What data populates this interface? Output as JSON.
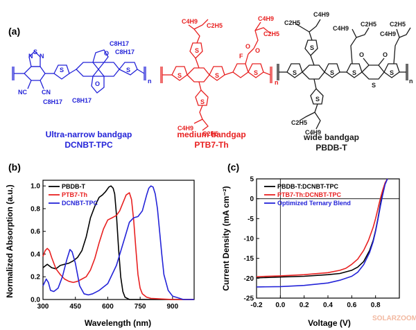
{
  "panel_a": {
    "label": "(a)",
    "molecules": [
      {
        "name": "DCNBT-TPC",
        "caption": "Ultra-narrow bandgap",
        "color": "#2323d8",
        "groups": [
          "C8H17",
          "C8H17",
          "C8H17",
          "C8H17"
        ],
        "atoms": [
          "N",
          "S",
          "N",
          "NC",
          "CN",
          "O",
          "O",
          "S",
          "S",
          "n"
        ]
      },
      {
        "name": "PTB7-Th",
        "caption": "medium bandgap",
        "color": "#e82020",
        "groups": [
          "C4H9",
          "C2H5",
          "C4H9",
          "C2H5",
          "C4H9",
          "C2H5"
        ],
        "atoms": [
          "S",
          "S",
          "S",
          "S",
          "F",
          "O",
          "O",
          "S",
          "n"
        ]
      },
      {
        "name": "PBDB-T",
        "caption": "wide bandgap",
        "color": "#1a1a1a",
        "groups": [
          "C2H5",
          "C4H9",
          "C4H9",
          "C2H5",
          "C4H9",
          "C2H5",
          "C2H5",
          "C4H9"
        ],
        "atoms": [
          "S",
          "S",
          "S",
          "S",
          "O",
          "O",
          "S",
          "S",
          "S",
          "n"
        ]
      }
    ]
  },
  "chart_data": [
    {
      "panel": "(b)",
      "type": "line",
      "xlabel": "Wavelength (nm)",
      "ylabel": "Normalized Absorption (a.u.)",
      "xlim": [
        300,
        1000
      ],
      "ylim": [
        0,
        1.05
      ],
      "xticks": [
        300,
        450,
        600,
        750,
        900
      ],
      "yticks": [
        0.0,
        0.2,
        0.4,
        0.6,
        0.8,
        1.0
      ],
      "legend_position": "top-left",
      "series": [
        {
          "name": "PBDB-T",
          "color": "#000000",
          "x": [
            300,
            320,
            340,
            360,
            380,
            400,
            420,
            440,
            460,
            480,
            500,
            520,
            540,
            560,
            575,
            590,
            605,
            615,
            625,
            632,
            640,
            650,
            660,
            670,
            680,
            700,
            750,
            800,
            900,
            1000
          ],
          "y": [
            0.28,
            0.31,
            0.28,
            0.27,
            0.3,
            0.31,
            0.32,
            0.34,
            0.37,
            0.43,
            0.55,
            0.72,
            0.82,
            0.9,
            0.92,
            0.95,
            0.99,
            1.0,
            0.98,
            0.93,
            0.75,
            0.45,
            0.2,
            0.07,
            0.02,
            0.0,
            0.0,
            0.0,
            0.0,
            0.0
          ]
        },
        {
          "name": "PTB7-Th",
          "color": "#e82020",
          "x": [
            300,
            310,
            320,
            330,
            340,
            360,
            380,
            400,
            420,
            440,
            460,
            480,
            500,
            520,
            540,
            560,
            580,
            600,
            620,
            640,
            655,
            670,
            685,
            700,
            710,
            720,
            730,
            740,
            750,
            760,
            780,
            800,
            900,
            1000
          ],
          "y": [
            0.38,
            0.43,
            0.45,
            0.43,
            0.37,
            0.27,
            0.22,
            0.18,
            0.16,
            0.15,
            0.16,
            0.18,
            0.2,
            0.26,
            0.36,
            0.5,
            0.62,
            0.7,
            0.72,
            0.74,
            0.78,
            0.85,
            0.92,
            0.94,
            0.88,
            0.7,
            0.45,
            0.22,
            0.1,
            0.05,
            0.02,
            0.01,
            0.0,
            0.0
          ]
        },
        {
          "name": "DCNBT-TPC",
          "color": "#2323d8",
          "x": [
            300,
            315,
            325,
            335,
            350,
            370,
            390,
            410,
            425,
            435,
            450,
            470,
            490,
            510,
            530,
            560,
            600,
            640,
            680,
            700,
            720,
            740,
            760,
            780,
            790,
            800,
            810,
            820,
            830,
            840,
            850,
            860,
            880,
            900,
            950,
            1000
          ],
          "y": [
            0.12,
            0.18,
            0.15,
            0.08,
            0.07,
            0.1,
            0.2,
            0.35,
            0.44,
            0.42,
            0.32,
            0.12,
            0.05,
            0.04,
            0.05,
            0.08,
            0.14,
            0.3,
            0.55,
            0.68,
            0.72,
            0.73,
            0.78,
            0.92,
            0.98,
            1.0,
            0.99,
            0.93,
            0.8,
            0.6,
            0.4,
            0.22,
            0.08,
            0.03,
            0.0,
            0.0
          ]
        }
      ]
    },
    {
      "panel": "(c)",
      "type": "line",
      "xlabel": "Voltage (V)",
      "ylabel": "Current Density (mA cm⁻²)",
      "xlim": [
        -0.2,
        1.0
      ],
      "ylim": [
        -25,
        5
      ],
      "xticks": [
        -0.2,
        0.0,
        0.2,
        0.4,
        0.6,
        0.8
      ],
      "xtick_labels": [
        "-0.2",
        "0.0",
        "0.2",
        "0.4",
        "0.6",
        "0.8"
      ],
      "yticks": [
        -25,
        -20,
        -15,
        -10,
        -5,
        0,
        5
      ],
      "legend_position": "top-left",
      "series": [
        {
          "name": "PBDB-T:DCNBT-TPC",
          "color": "#000000",
          "x": [
            -0.2,
            0.0,
            0.2,
            0.4,
            0.5,
            0.6,
            0.65,
            0.7,
            0.75,
            0.78,
            0.8,
            0.82,
            0.84,
            0.86,
            0.88,
            0.9
          ],
          "y": [
            -19.9,
            -19.7,
            -19.5,
            -19.1,
            -18.8,
            -18.0,
            -17.2,
            -15.8,
            -13.0,
            -10.5,
            -8.0,
            -5.0,
            -1.5,
            1.5,
            3.8,
            5.0
          ]
        },
        {
          "name": "PTB7-Th:DCNBT-TPC",
          "color": "#e82020",
          "x": [
            -0.2,
            0.0,
            0.2,
            0.4,
            0.5,
            0.55,
            0.6,
            0.65,
            0.7,
            0.74,
            0.78,
            0.8,
            0.82,
            0.84,
            0.86,
            0.88,
            0.9
          ],
          "y": [
            -19.6,
            -19.4,
            -19.1,
            -18.6,
            -18.0,
            -17.5,
            -16.5,
            -15.2,
            -13.0,
            -10.5,
            -7.2,
            -5.0,
            -2.5,
            0.0,
            2.2,
            4.0,
            5.0
          ]
        },
        {
          "name": "Optimized Ternary Blend",
          "color": "#2323d8",
          "x": [
            -0.2,
            0.0,
            0.2,
            0.4,
            0.5,
            0.6,
            0.65,
            0.7,
            0.75,
            0.78,
            0.8,
            0.82,
            0.84,
            0.86,
            0.88,
            0.9
          ],
          "y": [
            -22.2,
            -22.1,
            -21.8,
            -21.2,
            -20.5,
            -19.5,
            -18.5,
            -16.6,
            -13.5,
            -10.8,
            -8.2,
            -5.2,
            -2.0,
            1.0,
            3.6,
            5.0
          ]
        }
      ]
    }
  ],
  "watermark": "SOLARZOOM"
}
